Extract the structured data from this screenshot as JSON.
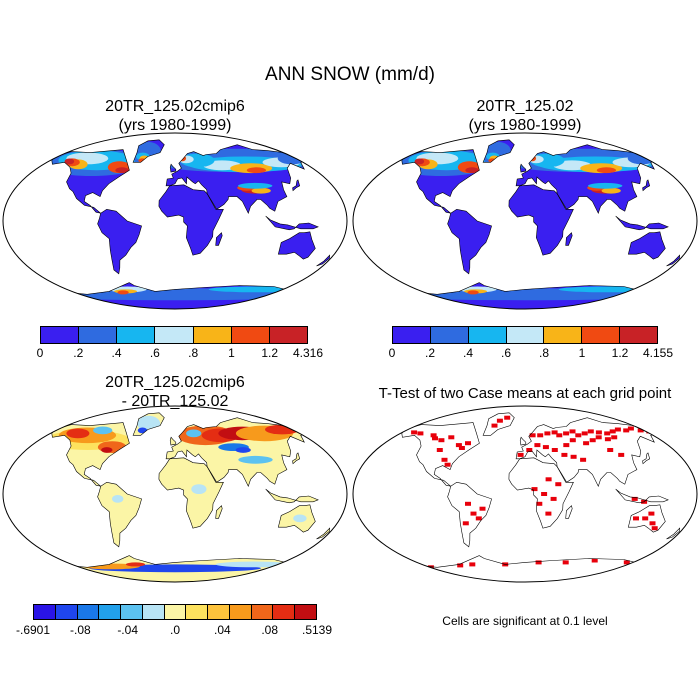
{
  "main_title": "ANN SNOW (mm/d)",
  "panels": [
    {
      "id": "case1",
      "title_line1": "20TR_125.02cmip6",
      "title_line2": "(yrs 1980-1999)",
      "kind": "snow"
    },
    {
      "id": "case2",
      "title_line1": "20TR_125.02",
      "title_line2": "(yrs 1980-1999)",
      "kind": "snow"
    },
    {
      "id": "diff",
      "title_line1": "20TR_125.02cmip6",
      "title_line2": "- 20TR_125.02",
      "kind": "diff"
    },
    {
      "id": "ttest",
      "title_line1": "T-Test of two Case means at each grid point",
      "title_line2": "",
      "kind": "ttest"
    }
  ],
  "colorbars": {
    "case1": {
      "colors": [
        "#3a1ff0",
        "#2f6be0",
        "#17b6f0",
        "#c4e8f7",
        "#f8b418",
        "#f04a12",
        "#c82226"
      ],
      "labels": [
        "0",
        ".2",
        ".4",
        ".6",
        ".8",
        "1",
        "1.2",
        "4.316"
      ]
    },
    "case2": {
      "colors": [
        "#3a1ff0",
        "#2f6be0",
        "#17b6f0",
        "#c4e8f7",
        "#f8b418",
        "#f04a12",
        "#c82226"
      ],
      "labels": [
        "0",
        ".2",
        ".4",
        ".6",
        ".8",
        "1",
        "1.2",
        "4.155"
      ]
    },
    "diff": {
      "colors": [
        "#2a14e6",
        "#1f46ee",
        "#1a78e8",
        "#22a0ea",
        "#5cc2f0",
        "#b8e4f5",
        "#fbf5a6",
        "#fde25e",
        "#fdc33c",
        "#f79a1c",
        "#f0661a",
        "#e42d13",
        "#c20e12"
      ],
      "labels": [
        "-.6901",
        "-.08",
        "-.04",
        ".0",
        ".04",
        ".08",
        ".5139"
      ]
    }
  },
  "significance_note": "Cells are significant at 0.1 level",
  "colors": {
    "ocean": "#ffffff",
    "land_low_snow": "#3a1ff0",
    "diff_near_zero": "#fbf5a6",
    "ttest_significant": "#e8000b",
    "coast": "#000000"
  }
}
